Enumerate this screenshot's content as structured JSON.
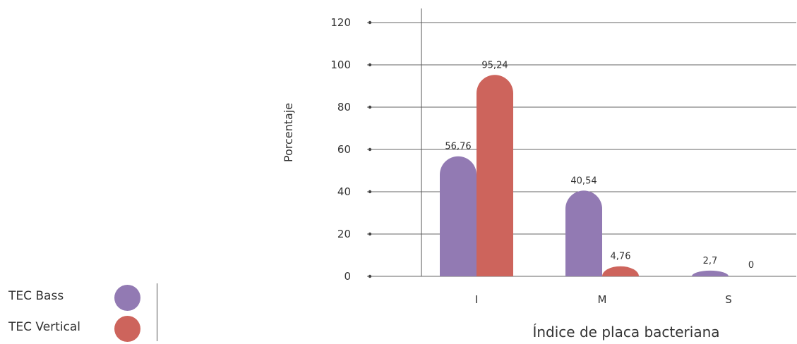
{
  "chart_data": {
    "type": "bar",
    "categories": [
      "I",
      "M",
      "S"
    ],
    "series": [
      {
        "name": "TEC Bass",
        "values": [
          56.76,
          40.54,
          2.7
        ],
        "labels": [
          "56,76",
          "40,54",
          "2,7"
        ],
        "color": "#927ab3"
      },
      {
        "name": "TEC Vertical",
        "values": [
          95.24,
          4.76,
          0
        ],
        "labels": [
          "95,24",
          "4,76",
          "0"
        ],
        "color": "#cd645c"
      }
    ],
    "ylabel": "Porcentaje",
    "xlabel": "Índice de placa bacteriana",
    "ylim": [
      0,
      120
    ],
    "yticks": [
      0,
      20,
      40,
      60,
      80,
      100,
      120
    ],
    "grid": true,
    "legend_position": "bottom-left"
  }
}
